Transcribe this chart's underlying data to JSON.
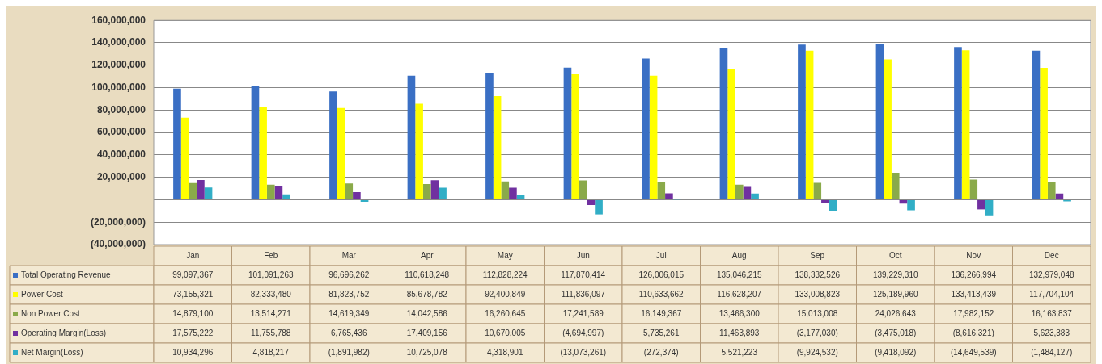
{
  "chart_data": {
    "type": "bar",
    "categories": [
      "Jan",
      "Feb",
      "Mar",
      "Apr",
      "May",
      "Jun",
      "Jul",
      "Aug",
      "Sep",
      "Oct",
      "Nov",
      "Dec"
    ],
    "series": [
      {
        "name": "Total Operating Revenue",
        "color": "#3a6fc4",
        "values": [
          99097367,
          101091263,
          96696262,
          110618248,
          112828224,
          117870414,
          126006015,
          135046215,
          138332526,
          139229310,
          136266994,
          132979048
        ],
        "value_labels": [
          "99,097,367",
          "101,091,263",
          "96,696,262",
          "110,618,248",
          "112,828,224",
          "117,870,414",
          "126,006,015",
          "135,046,215",
          "138,332,526",
          "139,229,310",
          "136,266,994",
          "132,979,048"
        ]
      },
      {
        "name": "Power Cost",
        "color": "#ffff00",
        "values": [
          73155321,
          82333480,
          81823752,
          85678782,
          92400849,
          111836097,
          110633662,
          116628207,
          133008823,
          125189960,
          133413439,
          117704104
        ],
        "value_labels": [
          "73,155,321",
          "82,333,480",
          "81,823,752",
          "85,678,782",
          "92,400,849",
          "111,836,097",
          "110,633,662",
          "116,628,207",
          "133,008,823",
          "125,189,960",
          "133,413,439",
          "117,704,104"
        ]
      },
      {
        "name": "Non Power Cost",
        "color": "#8aaa4a",
        "values": [
          14879100,
          13514271,
          14619349,
          14042586,
          16260645,
          17241589,
          16149367,
          13466300,
          15013008,
          24026643,
          17982152,
          16163837
        ],
        "value_labels": [
          "14,879,100",
          "13,514,271",
          "14,619,349",
          "14,042,586",
          "16,260,645",
          "17,241,589",
          "16,149,367",
          "13,466,300",
          "15,013,008",
          "24,026,643",
          "17,982,152",
          "16,163,837"
        ]
      },
      {
        "name": "Operating Margin(Loss)",
        "color": "#7030a0",
        "values": [
          17575222,
          11755788,
          6765436,
          17409156,
          10670005,
          -4694997,
          5735261,
          11463893,
          -3177030,
          -3475018,
          -8616321,
          5623383
        ],
        "value_labels": [
          "17,575,222",
          "11,755,788",
          "6,765,436",
          "17,409,156",
          "10,670,005",
          "(4,694,997)",
          "5,735,261",
          "11,463,893",
          "(3,177,030)",
          "(3,475,018)",
          "(8,616,321)",
          "5,623,383"
        ]
      },
      {
        "name": "Net Margin(Loss)",
        "color": "#31aec6",
        "values": [
          10934296,
          4818217,
          -1891982,
          10725078,
          4318901,
          -13073261,
          -272374,
          5521223,
          -9924532,
          -9418092,
          -14649539,
          -1484127
        ],
        "value_labels": [
          "10,934,296",
          "4,818,217",
          "(1,891,982)",
          "10,725,078",
          "4,318,901",
          "(13,073,261)",
          "(272,374)",
          "5,521,223",
          "(9,924,532)",
          "(9,418,092)",
          "(14,649,539)",
          "(1,484,127)"
        ]
      }
    ],
    "ylim": [
      -40000000,
      160000000
    ],
    "yticks": [
      {
        "value": -40000000,
        "label": "(40,000,000)"
      },
      {
        "value": -20000000,
        "label": "(20,000,000)"
      },
      {
        "value": 0,
        "label": null
      },
      {
        "value": 20000000,
        "label": "20,000,000"
      },
      {
        "value": 40000000,
        "label": "40,000,000"
      },
      {
        "value": 60000000,
        "label": "60,000,000"
      },
      {
        "value": 80000000,
        "label": "80,000,000"
      },
      {
        "value": 100000000,
        "label": "100,000,000"
      },
      {
        "value": 120000000,
        "label": "120,000,000"
      },
      {
        "value": 140000000,
        "label": "140,000,000"
      },
      {
        "value": 160000000,
        "label": "160,000,000"
      }
    ],
    "grid": "y",
    "legend": "bottom"
  }
}
